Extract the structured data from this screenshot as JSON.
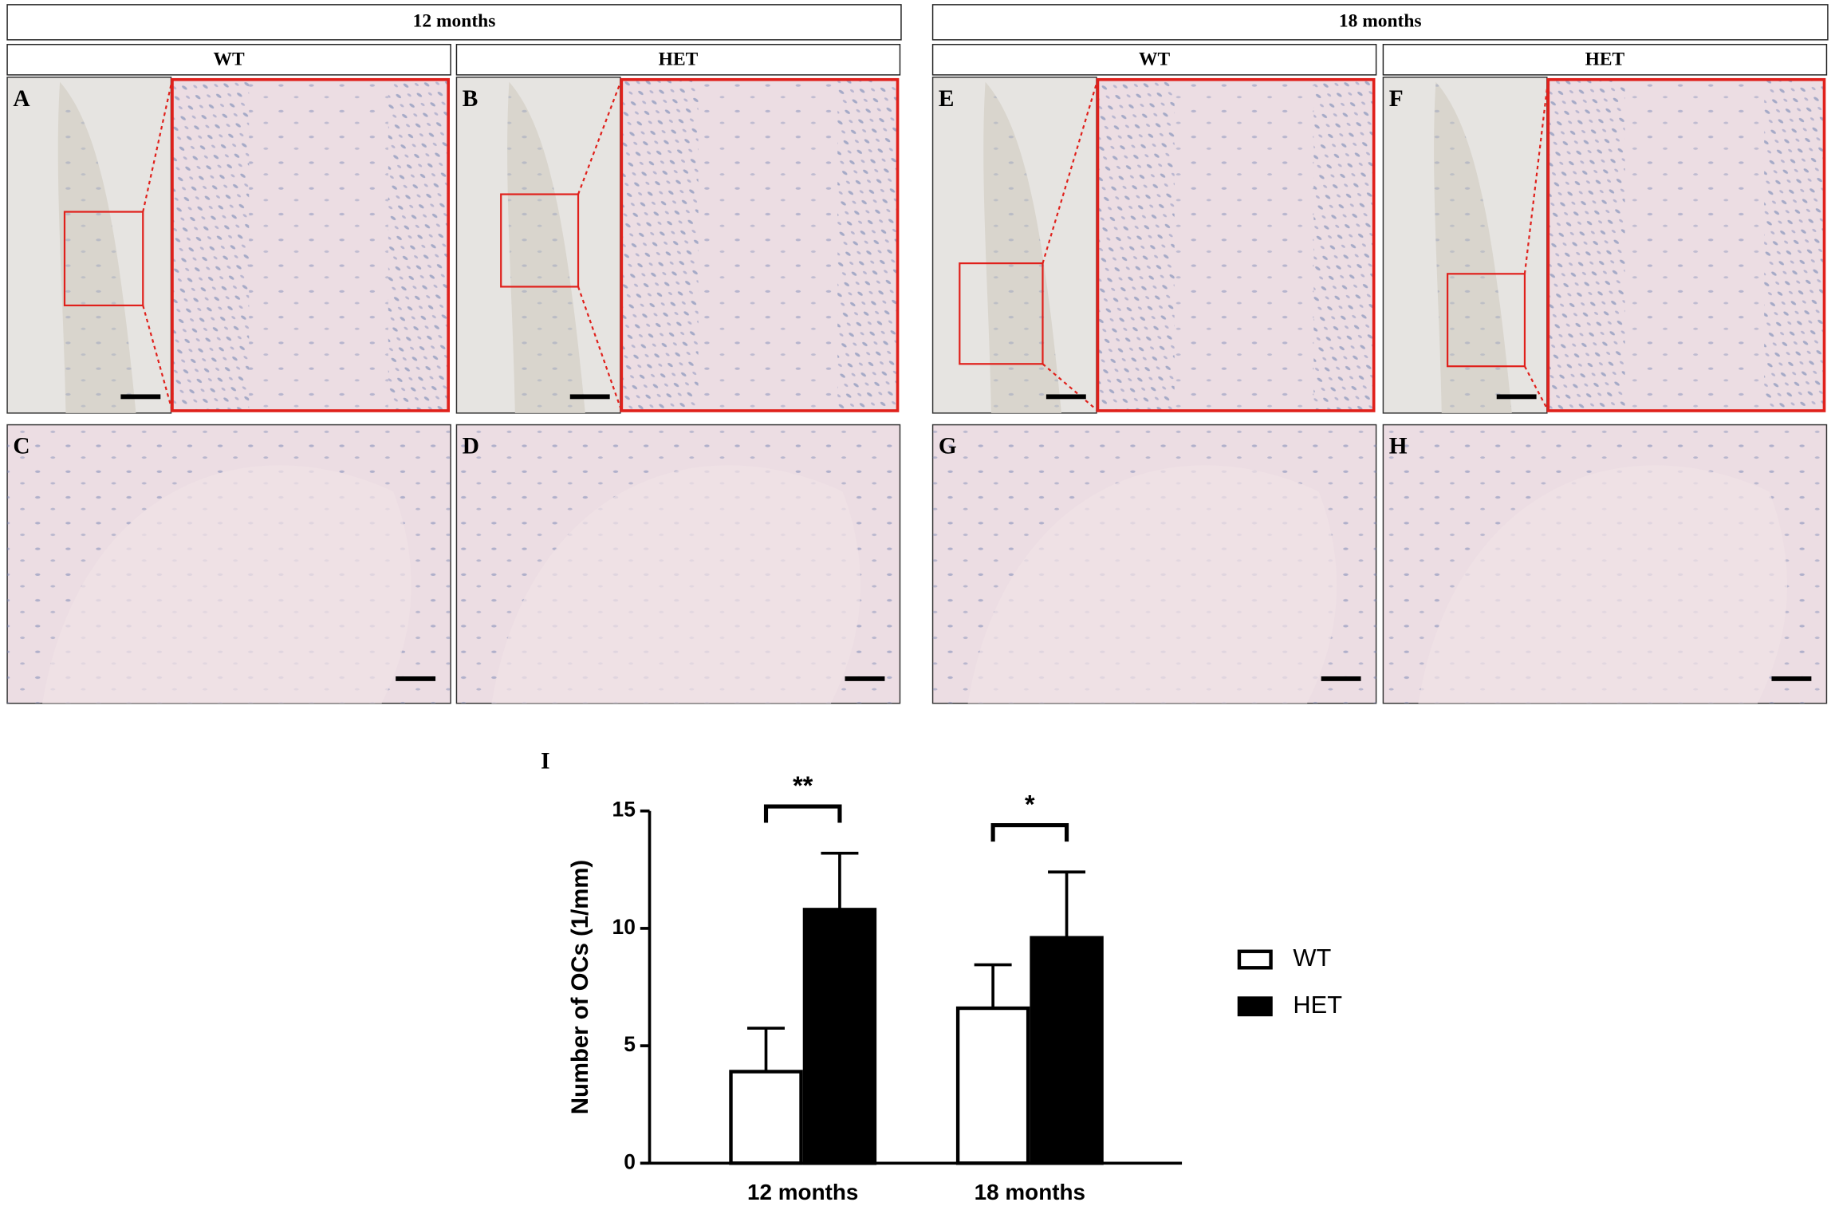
{
  "groups": [
    {
      "label": "12 months",
      "subgroups": [
        "WT",
        "HET"
      ]
    },
    {
      "label": "18 months",
      "subgroups": [
        "WT",
        "HET"
      ]
    }
  ],
  "panels": [
    "A",
    "B",
    "C",
    "D",
    "E",
    "F",
    "G",
    "H"
  ],
  "chart_label": "I",
  "chart_data": {
    "type": "bar",
    "ylabel": "Number of OCs (1/mm)",
    "categories": [
      "12 months",
      "18 months"
    ],
    "series": [
      {
        "name": "WT",
        "color": "#ffffff",
        "values": [
          3.9,
          6.6
        ],
        "errors": [
          1.85,
          1.85
        ]
      },
      {
        "name": "HET",
        "color": "#000000",
        "values": [
          10.8,
          9.6
        ],
        "errors": [
          2.4,
          2.8
        ]
      }
    ],
    "ylim": [
      0,
      15
    ],
    "yticks": [
      0,
      5,
      10,
      15
    ],
    "significance": [
      "**",
      "*"
    ]
  }
}
